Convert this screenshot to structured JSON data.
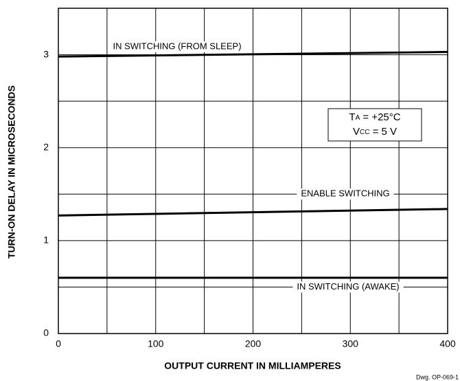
{
  "chart_data": {
    "type": "line",
    "x_label": "OUTPUT CURRENT IN MILLIAMPERES",
    "y_label": "TURN-ON DELAY IN MICROSECONDS",
    "xlim": [
      0,
      400
    ],
    "xticks": [
      0,
      100,
      200,
      300,
      400
    ],
    "x_minor_ticks": [
      50,
      150,
      250,
      350
    ],
    "ylim": [
      0,
      3.5
    ],
    "yticks": [
      0,
      1,
      2,
      3
    ],
    "y_minor_ticks": [
      0.5,
      1.5,
      2.5,
      3.5
    ],
    "grid": true,
    "x": [
      0,
      400
    ],
    "series": [
      {
        "name": "IN SWITCHING (FROM SLEEP)",
        "color": "#000000",
        "values": [
          2.98,
          3.03
        ]
      },
      {
        "name": "ENABLE SWITCHING",
        "color": "#000000",
        "values": [
          1.27,
          1.34
        ]
      },
      {
        "name": "IN SWITCHING (AWAKE)",
        "color": "#000000",
        "values": [
          0.6,
          0.6
        ]
      }
    ],
    "conditions": [
      {
        "symbol": "T",
        "sub": "A",
        "rest": " = +25°C"
      },
      {
        "symbol": "V",
        "sub": "CC",
        "rest": " = 5 V"
      }
    ],
    "footnote": "Dwg. OP-069-1"
  }
}
